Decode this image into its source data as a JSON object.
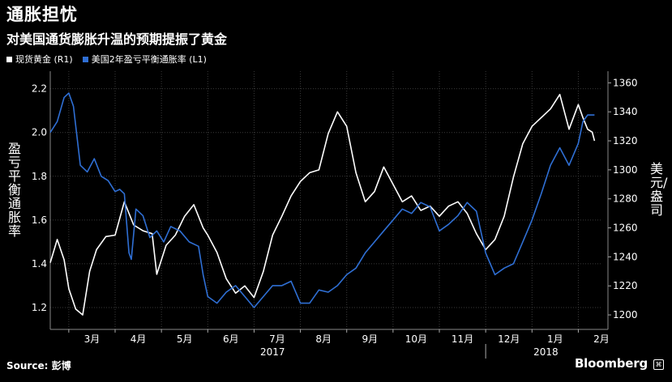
{
  "header": {
    "title": "通胀担忧",
    "subtitle": "对美国通货膨胀升温的预期提振了黄金"
  },
  "legend": {
    "gold_label": "现货黄金 (R1)",
    "breakeven_label": "美国2年盈亏平衡通胀率 (L1)"
  },
  "footer": {
    "source": "Source: 彭博",
    "brand": "Bloomberg",
    "brand_icon": "bloomberg-terminal-icon"
  },
  "colors": {
    "background": "#000000",
    "gold_series": "#ffffff",
    "breakeven_series": "#2f6fd4",
    "gridline": "#3a3a3a"
  },
  "chart_data": {
    "type": "line",
    "grid": true,
    "legend_placement": "top-left",
    "x_tick_labels": [
      "3月",
      "4月",
      "5月",
      "6月",
      "7月",
      "8月",
      "9月",
      "10月",
      "11月",
      "12月",
      "1月",
      "2月"
    ],
    "year_labels": [
      "2017",
      "2018"
    ],
    "x_range": [
      0.6,
      12.5
    ],
    "y_left": {
      "label": "盈亏平衡通胀率",
      "range": [
        1.1,
        2.28
      ],
      "ticks": [
        "1.2",
        "1.4",
        "1.6",
        "1.8",
        "2.0",
        "2.2"
      ]
    },
    "y_right": {
      "label": "美元/盎司",
      "range": [
        1190,
        1368
      ],
      "ticks": [
        "1200",
        "1220",
        "1240",
        "1260",
        "1280",
        "1300",
        "1320",
        "1340",
        "1360"
      ]
    },
    "series": [
      {
        "name": "现货黄金 (R1)",
        "axis": "right",
        "x": [
          0.6,
          0.75,
          0.9,
          1.0,
          1.15,
          1.3,
          1.45,
          1.6,
          1.8,
          2.0,
          2.2,
          2.4,
          2.6,
          2.8,
          2.9,
          3.1,
          3.3,
          3.5,
          3.7,
          3.9,
          4.0,
          4.2,
          4.4,
          4.6,
          4.8,
          5.0,
          5.2,
          5.4,
          5.6,
          5.8,
          6.0,
          6.2,
          6.4,
          6.6,
          6.8,
          7.0,
          7.2,
          7.4,
          7.6,
          7.8,
          8.0,
          8.2,
          8.4,
          8.6,
          8.8,
          9.0,
          9.2,
          9.4,
          9.6,
          9.8,
          10.0,
          10.2,
          10.4,
          10.6,
          10.8,
          11.0,
          11.2,
          11.4,
          11.6,
          11.8,
          12.0,
          12.1,
          12.2,
          12.3,
          12.35
        ],
        "values": [
          1236,
          1252,
          1238,
          1218,
          1204,
          1200,
          1230,
          1245,
          1254,
          1255,
          1278,
          1262,
          1258,
          1256,
          1228,
          1248,
          1255,
          1268,
          1276,
          1260,
          1255,
          1243,
          1225,
          1215,
          1220,
          1212,
          1230,
          1255,
          1268,
          1282,
          1292,
          1298,
          1300,
          1325,
          1340,
          1330,
          1298,
          1278,
          1285,
          1302,
          1290,
          1278,
          1282,
          1272,
          1275,
          1268,
          1275,
          1278,
          1270,
          1256,
          1245,
          1252,
          1268,
          1295,
          1318,
          1330,
          1336,
          1342,
          1352,
          1328,
          1345,
          1336,
          1328,
          1326,
          1320
        ]
      },
      {
        "name": "美国2年盈亏平衡通胀率 (L1)",
        "axis": "left",
        "x": [
          0.6,
          0.75,
          0.9,
          1.0,
          1.1,
          1.25,
          1.4,
          1.55,
          1.7,
          1.85,
          2.0,
          2.1,
          2.2,
          2.3,
          2.35,
          2.45,
          2.6,
          2.75,
          2.9,
          3.05,
          3.2,
          3.4,
          3.6,
          3.8,
          3.9,
          4.0,
          4.2,
          4.4,
          4.6,
          4.8,
          5.0,
          5.2,
          5.4,
          5.6,
          5.8,
          6.0,
          6.2,
          6.4,
          6.6,
          6.8,
          7.0,
          7.2,
          7.4,
          7.6,
          7.8,
          8.0,
          8.2,
          8.4,
          8.6,
          8.8,
          9.0,
          9.2,
          9.4,
          9.6,
          9.8,
          10.0,
          10.2,
          10.4,
          10.6,
          10.8,
          11.0,
          11.2,
          11.4,
          11.6,
          11.8,
          12.0,
          12.1,
          12.2,
          12.35
        ],
        "values": [
          2.0,
          2.05,
          2.16,
          2.18,
          2.12,
          1.85,
          1.82,
          1.88,
          1.8,
          1.78,
          1.73,
          1.74,
          1.72,
          1.45,
          1.42,
          1.65,
          1.62,
          1.52,
          1.55,
          1.5,
          1.57,
          1.55,
          1.5,
          1.48,
          1.35,
          1.25,
          1.22,
          1.27,
          1.3,
          1.25,
          1.2,
          1.25,
          1.3,
          1.3,
          1.32,
          1.22,
          1.22,
          1.28,
          1.27,
          1.3,
          1.35,
          1.38,
          1.45,
          1.5,
          1.55,
          1.6,
          1.65,
          1.63,
          1.68,
          1.66,
          1.55,
          1.58,
          1.62,
          1.68,
          1.64,
          1.45,
          1.35,
          1.38,
          1.4,
          1.5,
          1.6,
          1.72,
          1.85,
          1.93,
          1.85,
          1.95,
          2.05,
          2.08,
          2.08
        ]
      }
    ]
  }
}
